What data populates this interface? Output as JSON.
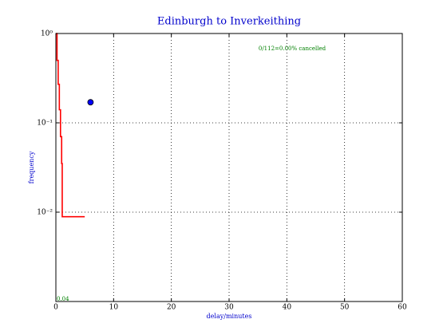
{
  "chart_data": {
    "type": "line",
    "title": "Edinburgh to Inverkeithing",
    "xlabel": "delay/minutes",
    "ylabel": "frequency",
    "annotations": [
      "0/112=0.00% cancelled",
      "0.04"
    ],
    "xlim": [
      0,
      60
    ],
    "xticks": [
      0,
      10,
      20,
      30,
      40,
      50,
      60
    ],
    "ylim": [
      0.001,
      1
    ],
    "log_y": true,
    "yticks": [
      {
        "value": 1,
        "label": "10⁰"
      },
      {
        "value": 0.1,
        "label": "10⁻¹"
      },
      {
        "value": 0.01,
        "label": "10⁻²"
      }
    ],
    "grid": true,
    "series": [
      {
        "color": "#ff0000",
        "style": "line",
        "x": [
          0,
          0.2,
          0.2,
          0.4,
          0.4,
          0.6,
          0.6,
          0.8,
          0.8,
          1,
          1,
          1.1,
          1.1,
          5
        ],
        "values": [
          1,
          1,
          0.5,
          0.5,
          0.27,
          0.27,
          0.14,
          0.14,
          0.07,
          0.07,
          0.035,
          0.035,
          0.0089,
          0.0089
        ]
      },
      {
        "color": "#0000ff",
        "style": "marker",
        "x": [
          6
        ],
        "values": [
          0.17
        ]
      },
      {
        "color": "#008000",
        "style": "line",
        "x": [
          0,
          0
        ],
        "values": [
          0.001,
          0.008
        ]
      }
    ]
  }
}
